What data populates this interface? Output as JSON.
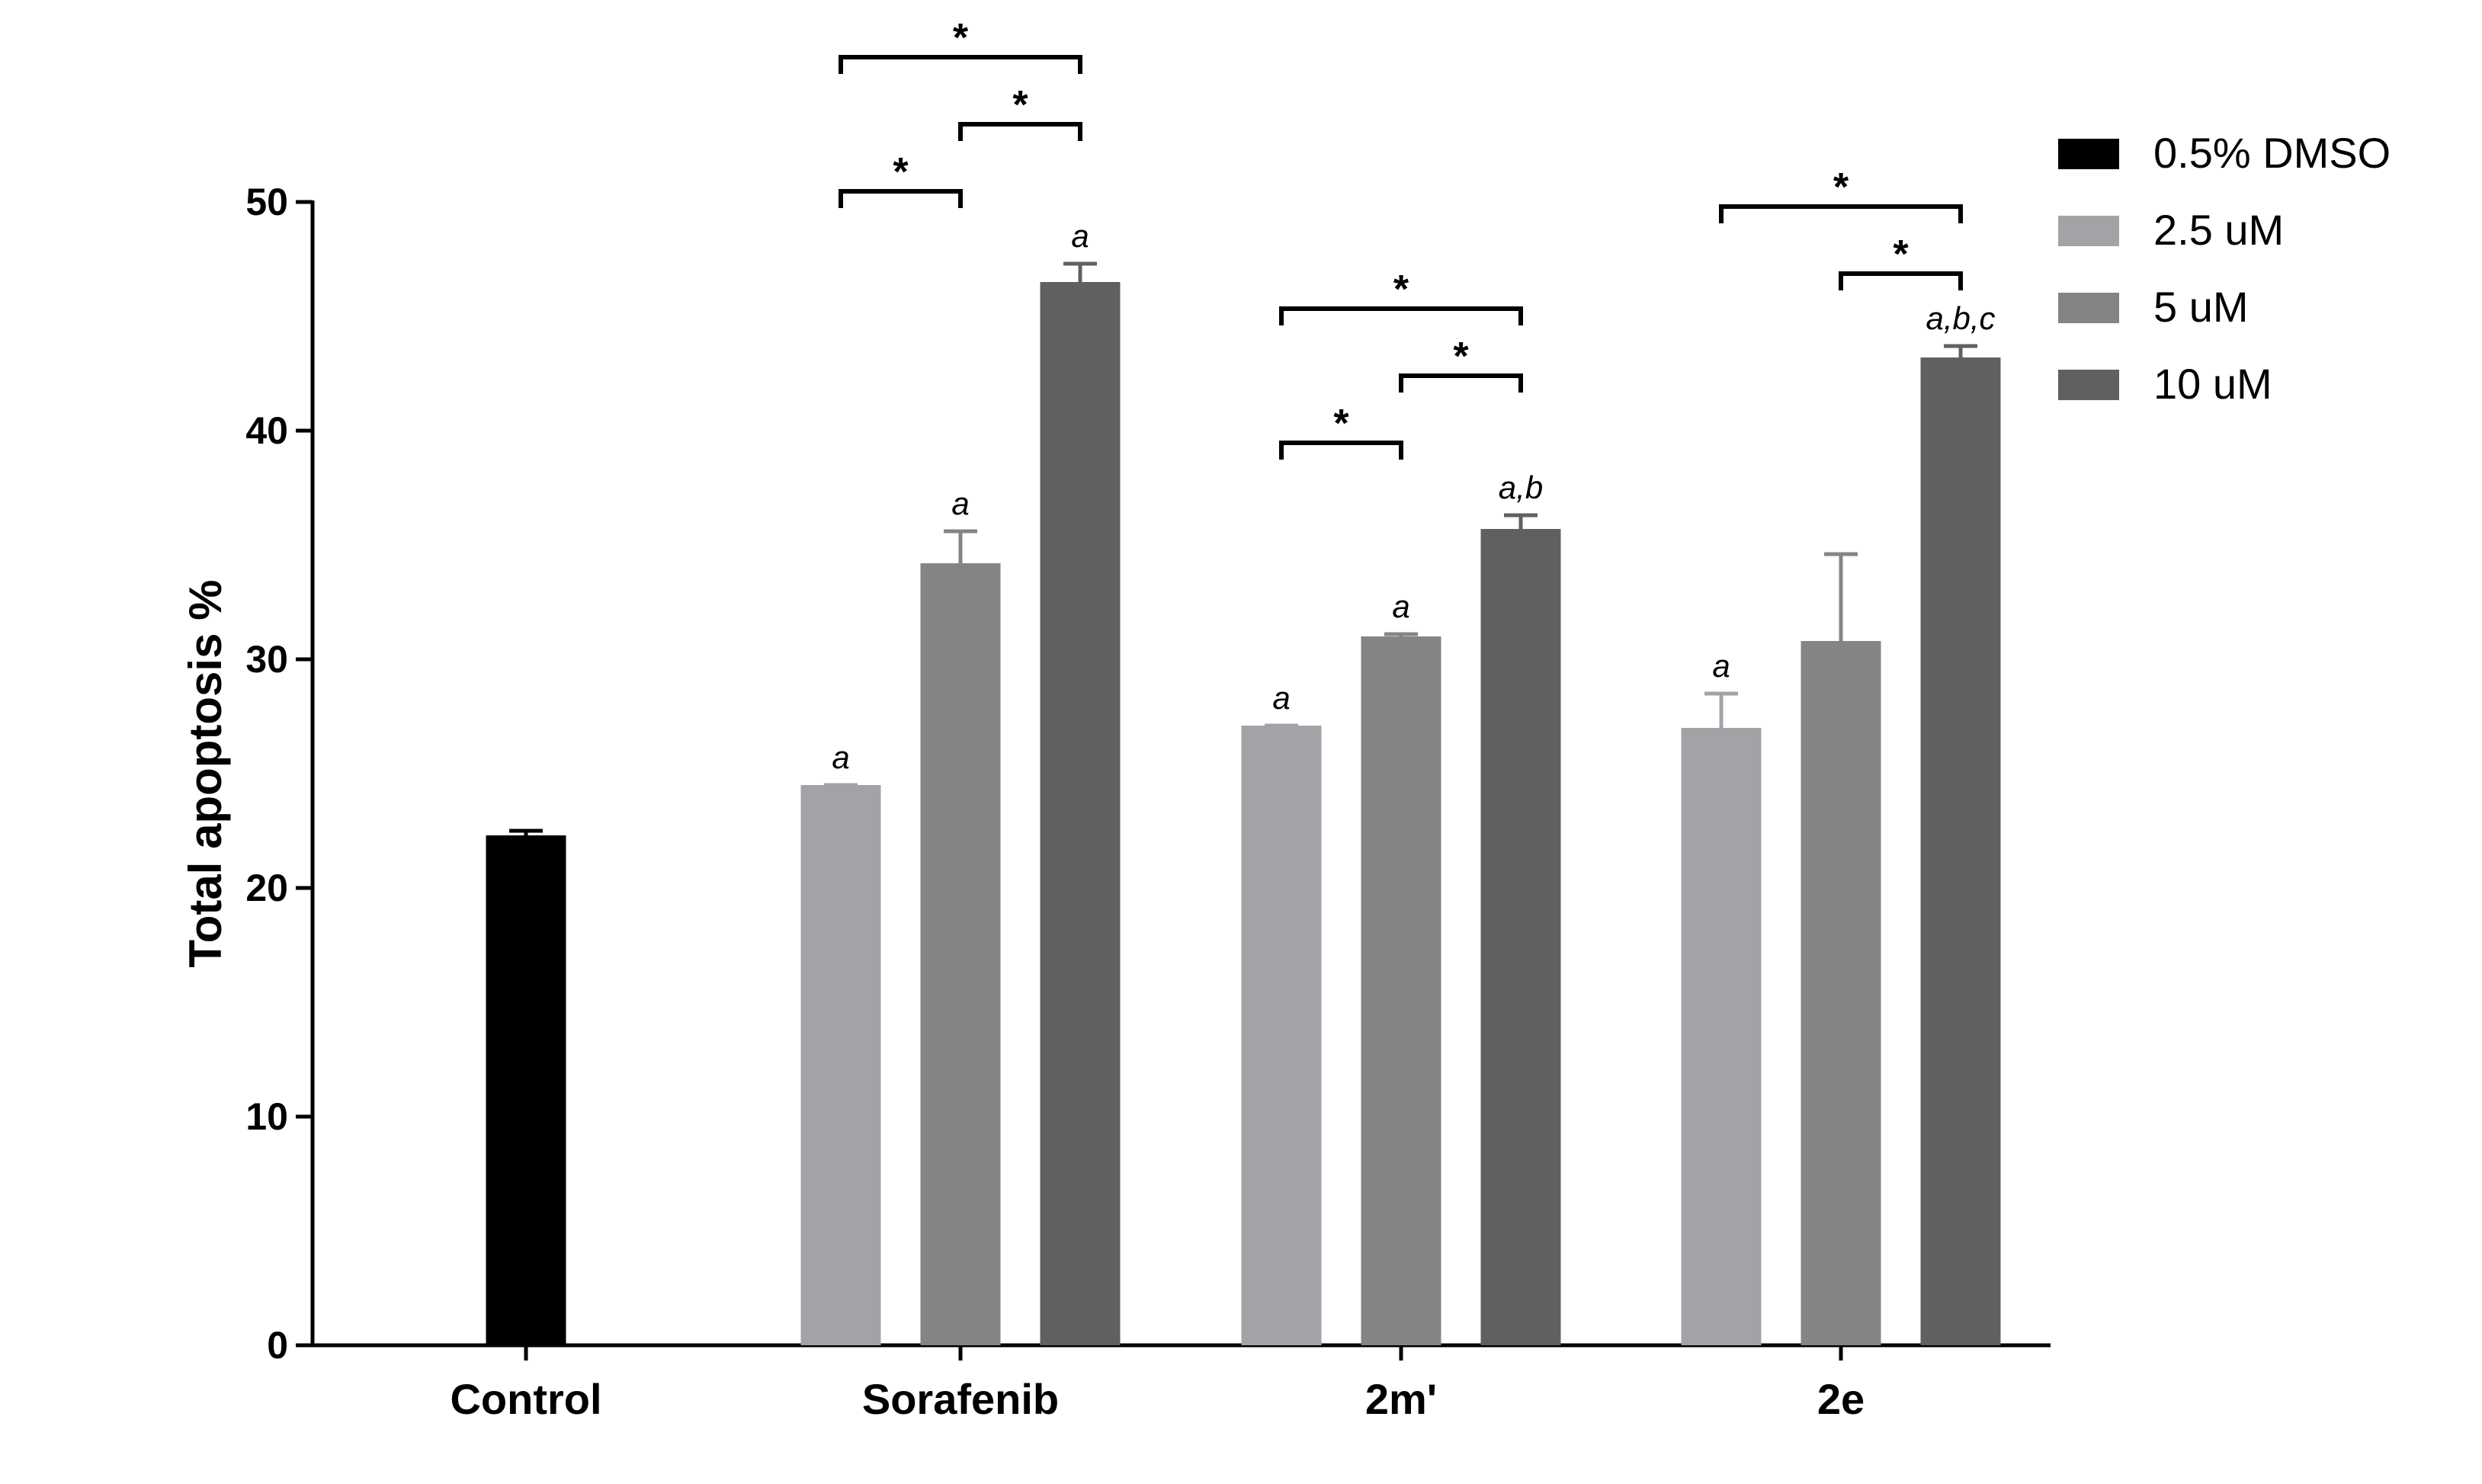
{
  "chart_data": {
    "type": "bar",
    "title": "",
    "xlabel": "",
    "ylabel": "Total apoptosis %",
    "ylim": [
      0,
      50
    ],
    "yticks": [
      0,
      10,
      20,
      30,
      40,
      50
    ],
    "grid": false,
    "legend_position": "top-right",
    "categories": [
      "Control",
      "Sorafenib",
      "2m'",
      "2e"
    ],
    "series": [
      {
        "name": "0.5% DMSO",
        "color": "#000000",
        "values": [
          22.3,
          null,
          null,
          null
        ],
        "errors": [
          0.2,
          null,
          null,
          null
        ],
        "annotations": [
          "",
          "",
          "",
          ""
        ]
      },
      {
        "name": "2.5 uM",
        "color": "#a3a3a7",
        "values": [
          null,
          24.5,
          27.1,
          27.0
        ],
        "errors": [
          null,
          0.0,
          0.0,
          1.5
        ],
        "annotations": [
          "",
          "a",
          "a",
          "a"
        ]
      },
      {
        "name": "5 uM",
        "color": "#848484",
        "values": [
          null,
          34.2,
          31.0,
          30.8
        ],
        "errors": [
          null,
          1.4,
          0.1,
          3.8
        ],
        "annotations": [
          "",
          "a",
          "a",
          ""
        ]
      },
      {
        "name": "10 uM",
        "color": "#606060",
        "values": [
          null,
          46.5,
          35.7,
          43.2
        ],
        "errors": [
          null,
          0.8,
          0.6,
          0.5
        ],
        "annotations": [
          "",
          "a",
          "a,b",
          "a,b,c"
        ]
      }
    ],
    "significance": [
      {
        "category": "Sorafenib",
        "from": "2.5 uM",
        "to": "5 uM",
        "label": "*"
      },
      {
        "category": "Sorafenib",
        "from": "2.5 uM",
        "to": "10 uM",
        "label": "*"
      },
      {
        "category": "Sorafenib",
        "from": "5 uM",
        "to": "10 uM",
        "label": "*"
      },
      {
        "category": "2m'",
        "from": "2.5 uM",
        "to": "5 uM",
        "label": "*"
      },
      {
        "category": "2m'",
        "from": "2.5 uM",
        "to": "10 uM",
        "label": "*"
      },
      {
        "category": "2m'",
        "from": "5 uM",
        "to": "10 uM",
        "label": "*"
      },
      {
        "category": "2e",
        "from": "2.5 uM",
        "to": "10 uM",
        "label": "*"
      },
      {
        "category": "2e",
        "from": "5 uM",
        "to": "10 uM",
        "label": "*"
      }
    ]
  }
}
